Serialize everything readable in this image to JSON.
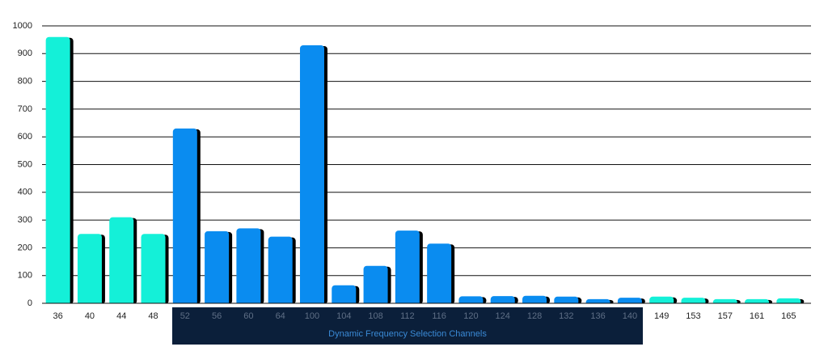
{
  "chart_data": {
    "type": "bar",
    "annotation": "Dynamic Frequency Selection Channels",
    "categories": [
      "36",
      "40",
      "44",
      "48",
      "52",
      "56",
      "60",
      "64",
      "100",
      "104",
      "108",
      "112",
      "116",
      "120",
      "124",
      "128",
      "132",
      "136",
      "140",
      "149",
      "153",
      "157",
      "161",
      "165"
    ],
    "values": [
      960,
      250,
      310,
      250,
      630,
      260,
      270,
      240,
      930,
      65,
      135,
      262,
      215,
      25,
      26,
      27,
      24,
      15,
      20,
      24,
      20,
      15,
      15,
      18
    ],
    "colors": [
      "#14f0d8",
      "#14f0d8",
      "#14f0d8",
      "#14f0d8",
      "#0a8cf0",
      "#0a8cf0",
      "#0a8cf0",
      "#0a8cf0",
      "#0a8cf0",
      "#0a8cf0",
      "#0a8cf0",
      "#0a8cf0",
      "#0a8cf0",
      "#0a8cf0",
      "#0a8cf0",
      "#0a8cf0",
      "#0a8cf0",
      "#0a8cf0",
      "#0a8cf0",
      "#14f0d8",
      "#14f0d8",
      "#14f0d8",
      "#14f0d8",
      "#14f0d8"
    ],
    "ylim": [
      0,
      1000
    ],
    "yticks": [
      0,
      100,
      200,
      300,
      400,
      500,
      600,
      700,
      800,
      900,
      1000
    ],
    "grid": true
  }
}
